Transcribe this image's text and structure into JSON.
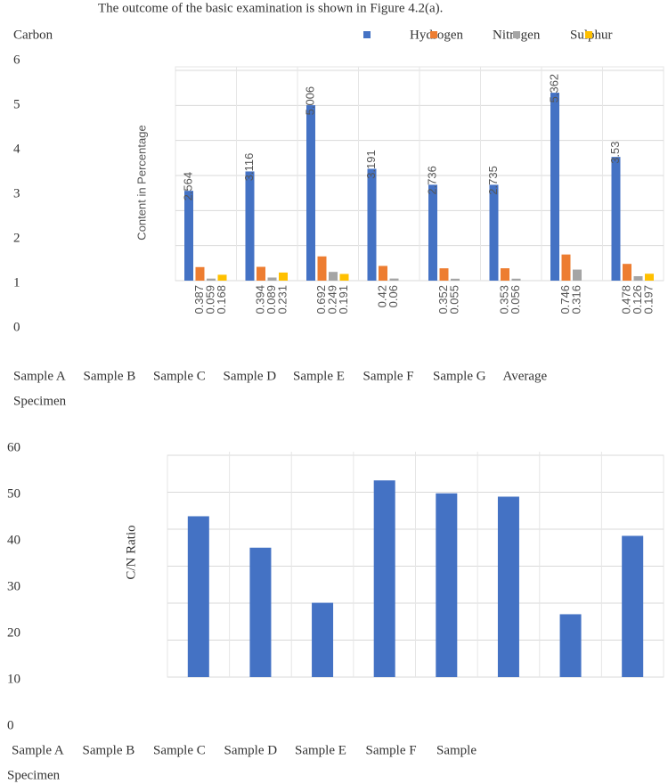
{
  "caption": "The outcome of the basic examination is shown in Figure 4.2(a).",
  "chart_data": [
    {
      "type": "bar",
      "categories": [
        "Sample A",
        "Sample B",
        "Sample C",
        "Sample D",
        "Sample E",
        "Sample F",
        "Sample G",
        "Average"
      ],
      "series": [
        {
          "name": "Carbon",
          "color": "#4472c4",
          "values": [
            2.564,
            3.116,
            5.006,
            3.191,
            2.736,
            2.735,
            5.362,
            3.53
          ]
        },
        {
          "name": "Hydrogen",
          "color": "#ed7d31",
          "values": [
            0.387,
            0.394,
            0.692,
            0.42,
            0.352,
            0.353,
            0.746,
            0.478
          ]
        },
        {
          "name": "Nitrogen",
          "color": "#a5a5a5",
          "values": [
            0.059,
            0.089,
            0.249,
            0.06,
            0.055,
            0.056,
            0.316,
            0.126
          ]
        },
        {
          "name": "Sulphur",
          "color": "#ffc000",
          "values": [
            0.168,
            0.231,
            0.191,
            null,
            null,
            null,
            null,
            0.197
          ]
        }
      ],
      "ylim": [
        0,
        6
      ],
      "yticks": [
        0,
        1,
        2,
        3,
        4,
        5,
        6
      ],
      "grid": true,
      "xlabel": "Specimen",
      "ylabel": "Content in Percentage"
    },
    {
      "type": "bar",
      "categories": [
        "Sample A",
        "Sample B",
        "Sample C",
        "Sample D",
        "Sample E",
        "Sample F",
        "Sample",
        null
      ],
      "values": [
        43.5,
        35.0,
        20.1,
        53.2,
        49.7,
        48.8,
        17.0,
        38.2
      ],
      "color": "#4472c4",
      "ylim": [
        0,
        60
      ],
      "yticks": [
        0,
        10,
        20,
        30,
        40,
        50,
        60
      ],
      "grid": true,
      "xlabel": "Specimen",
      "ylabel": "C/N Ratio"
    }
  ]
}
